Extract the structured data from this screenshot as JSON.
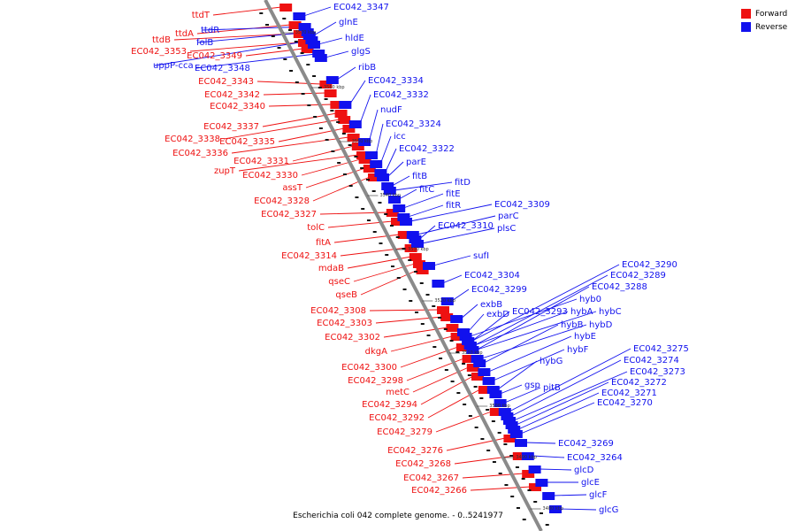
{
  "legend": {
    "forward": {
      "label": "Forward",
      "color": "#ee1111"
    },
    "reverse": {
      "label": "Reverse",
      "color": "#1111ee"
    }
  },
  "caption": "Escherichia coli 042 complete genome. - 0..5241977",
  "axis": {
    "ticks": [
      "3570 kbp",
      "3560 kbp",
      "3550 kbp",
      "3540 kbp",
      "3530 kbp",
      "3520 kbp",
      "3510 kbp",
      "3500 kbp",
      "3490 kbp",
      "3480 kbp"
    ]
  },
  "forward_genes": [
    "ttdT",
    "ttdA",
    "ttdB",
    "EC042_3353",
    "EC042_3349",
    "EC042_3343",
    "EC042_3342",
    "EC042_3340",
    "EC042_3337",
    "EC042_3338",
    "EC042_3335",
    "EC042_3336",
    "EC042_3331",
    "zupT",
    "EC042_3330",
    "assT",
    "EC042_3328",
    "EC042_3327",
    "tolC",
    "fitA",
    "EC042_3314",
    "mdaB",
    "qseC",
    "qseB",
    "EC042_3308",
    "EC042_3303",
    "EC042_3302",
    "dkgA",
    "EC042_3300",
    "EC042_3298",
    "metC",
    "EC042_3294",
    "EC042_3292",
    "EC042_3279",
    "EC042_3276",
    "EC042_3268",
    "EC042_3267",
    "EC042_3266"
  ],
  "reverse_genes": [
    "EC042_3347",
    "glnE",
    "ttdR",
    "folB",
    "hldE",
    "uppP-cca",
    "EC042_3348",
    "glgS",
    "ribB",
    "EC042_3334",
    "EC042_3332",
    "nudF",
    "EC042_3324",
    "icc",
    "EC042_3322",
    "parE",
    "fitB",
    "fitD",
    "fitC",
    "fitE",
    "fitR",
    "EC042_3309",
    "parC",
    "EC042_3310",
    "plsC",
    "sufI",
    "EC042_3304",
    "EC042_3299",
    "exbB",
    "exbD",
    "EC042_3293",
    "hybA",
    "hybC",
    "hybD",
    "hybB",
    "hybE",
    "hybF",
    "hybG",
    "hyb0",
    "EC042_3290",
    "EC042_3289",
    "EC042_3288",
    "gsp",
    "pitB",
    "EC042_3275",
    "EC042_3274",
    "EC042_3273",
    "EC042_3272",
    "EC042_3271",
    "EC042_3270",
    "EC042_3269",
    "EC042_3264",
    "glcD",
    "glcE",
    "glcF",
    "glcG"
  ]
}
